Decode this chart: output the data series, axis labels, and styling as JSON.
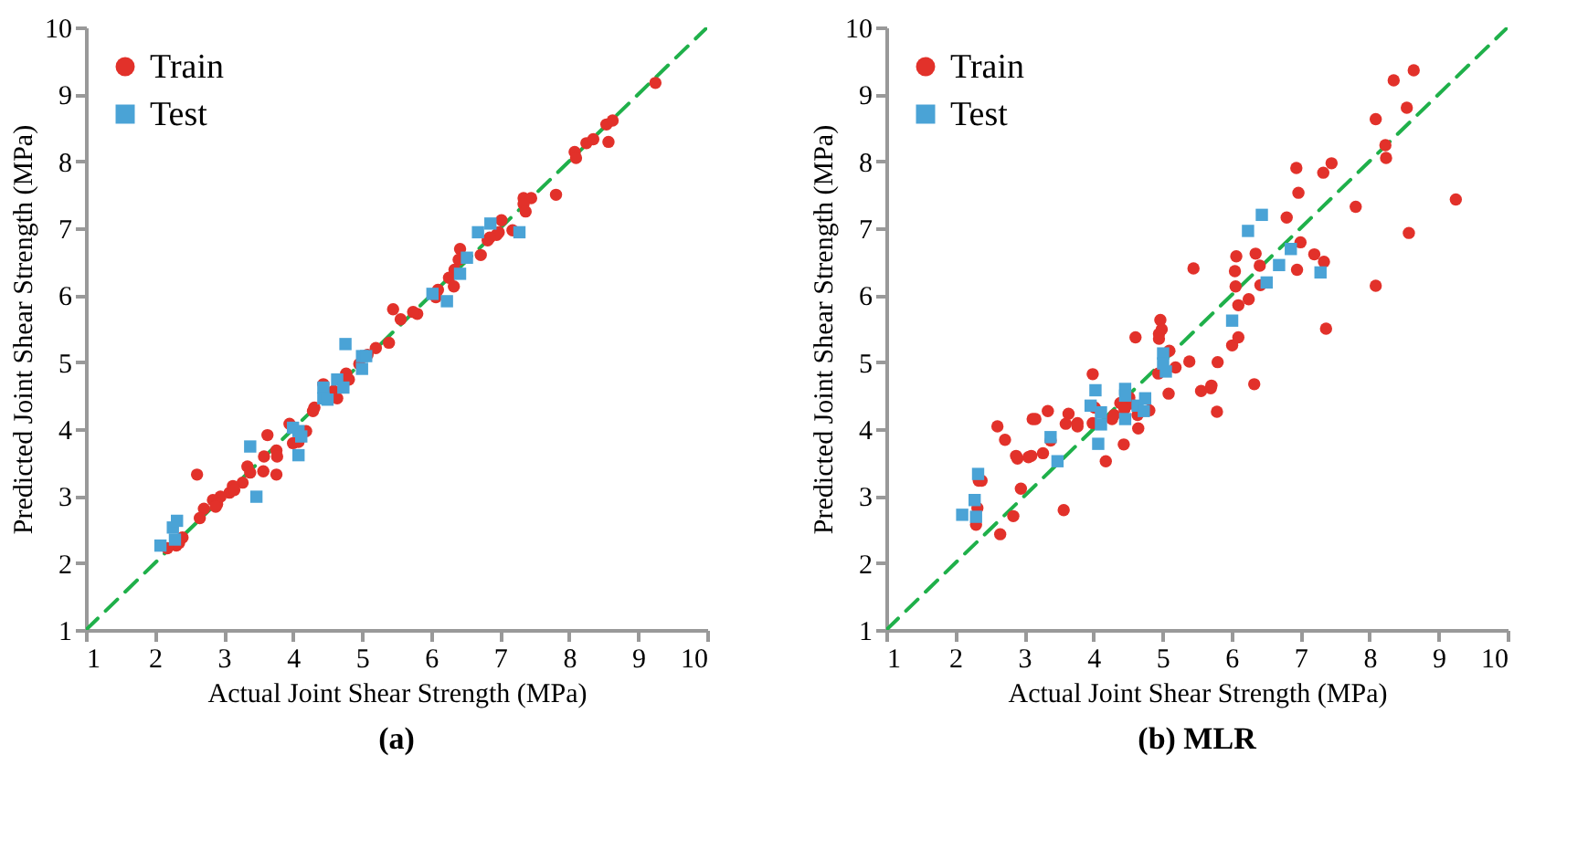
{
  "chart_data": [
    {
      "type": "scatter",
      "title": "(a)",
      "xlabel": "Actual Joint Shear Strength (MPa)",
      "ylabel": "Predicted Joint Shear Strength (MPa)",
      "xlim": [
        1,
        10
      ],
      "ylim": [
        1,
        10
      ],
      "xticks": [
        1,
        2,
        3,
        4,
        5,
        6,
        7,
        8,
        9,
        10
      ],
      "yticks": [
        1,
        2,
        3,
        4,
        5,
        6,
        7,
        8,
        9,
        10
      ],
      "grid": false,
      "legend": "top left",
      "series": [
        {
          "type": "line",
          "color": "#1fb04a",
          "line_style": "dashed",
          "marker": "none",
          "x": [
            1,
            10
          ],
          "values": [
            1,
            10
          ]
        },
        {
          "name": "Train",
          "color": "#e2312a",
          "marker": "circle",
          "x": [
            9.25,
            8.54,
            8.63,
            8.57,
            8.25,
            8.35,
            8.08,
            8.1,
            7.81,
            7.34,
            7.45,
            7.34,
            7.37,
            7.02,
            6.98,
            7.18,
            6.95,
            6.82,
            6.85,
            6.72,
            6.42,
            6.4,
            6.34,
            6.26,
            6.33,
            6.1,
            6.07,
            5.8,
            5.74,
            5.56,
            5.45,
            5.39,
            5.2,
            5.08,
            4.96,
            4.77,
            4.81,
            4.59,
            4.64,
            4.44,
            4.31,
            4.29,
            4.19,
            3.95,
            4.0,
            4.08,
            3.63,
            3.76,
            3.77,
            3.58,
            3.57,
            3.76,
            3.34,
            3.38,
            3.27,
            3.13,
            3.08,
            3.15,
            2.95,
            2.84,
            2.9,
            2.88,
            2.61,
            2.71,
            2.65,
            2.4,
            2.31,
            2.35,
            2.18
          ],
          "values": [
            9.17,
            8.55,
            8.61,
            8.29,
            8.27,
            8.33,
            8.14,
            8.05,
            7.5,
            7.45,
            7.45,
            7.36,
            7.25,
            7.12,
            6.94,
            6.97,
            6.9,
            6.82,
            6.86,
            6.6,
            6.69,
            6.53,
            6.38,
            6.26,
            6.13,
            6.08,
            5.97,
            5.72,
            5.75,
            5.64,
            5.79,
            5.29,
            5.21,
            5.11,
            4.97,
            4.83,
            4.74,
            4.57,
            4.46,
            4.67,
            4.32,
            4.27,
            3.97,
            4.08,
            3.79,
            3.81,
            3.91,
            3.68,
            3.59,
            3.59,
            3.37,
            3.32,
            3.44,
            3.35,
            3.2,
            3.15,
            3.05,
            3.09,
            2.99,
            2.94,
            2.88,
            2.84,
            3.32,
            2.81,
            2.67,
            2.38,
            2.26,
            2.3,
            2.22
          ]
        },
        {
          "name": "Test",
          "color": "#4aa3d6",
          "marker": "square",
          "x": [
            2.08,
            2.26,
            2.32,
            2.29,
            3.38,
            3.47,
            4.0,
            4.08,
            4.12,
            4.08,
            4.44,
            4.44,
            4.5,
            4.64,
            4.73,
            4.76,
            5.0,
            5.06,
            5.0,
            6.02,
            6.23,
            6.42,
            6.52,
            6.68,
            6.86,
            7.28
          ],
          "values": [
            2.26,
            2.53,
            2.63,
            2.35,
            3.74,
            2.99,
            4.02,
            3.97,
            3.89,
            3.61,
            4.62,
            4.46,
            4.44,
            4.74,
            4.62,
            5.27,
            5.09,
            5.09,
            4.9,
            6.02,
            5.91,
            6.32,
            6.56,
            6.94,
            7.07,
            6.94
          ]
        }
      ]
    },
    {
      "type": "scatter",
      "title": "(b) MLR",
      "xlabel": "Actual Joint Shear Strength (MPa)",
      "ylabel": "Predicted Joint Shear Strength (MPa)",
      "xlim": [
        1,
        10
      ],
      "ylim": [
        1,
        10
      ],
      "xticks": [
        1,
        2,
        3,
        4,
        5,
        6,
        7,
        8,
        9,
        10
      ],
      "yticks": [
        1,
        2,
        3,
        4,
        5,
        6,
        7,
        8,
        9,
        10
      ],
      "grid": false,
      "legend": "top left",
      "series": [
        {
          "type": "line",
          "color": "#1fb04a",
          "line_style": "dashed",
          "marker": "none",
          "x": [
            1,
            10
          ],
          "values": [
            1,
            10
          ]
        },
        {
          "name": "Train",
          "color": "#e2312a",
          "marker": "circle",
          "x": [
            8.64,
            8.35,
            8.54,
            8.09,
            8.23,
            8.24,
            9.25,
            8.57,
            8.09,
            7.8,
            6.94,
            7.45,
            7.33,
            6.97,
            6.8,
            7.0,
            7.2,
            7.34,
            6.95,
            7.37,
            6.07,
            6.35,
            6.41,
            6.05,
            6.42,
            6.06,
            6.25,
            6.1,
            6.01,
            6.1,
            5.8,
            6.33,
            5.45,
            4.97,
            4.99,
            4.95,
            4.95,
            5.1,
            5.19,
            5.39,
            5.09,
            4.94,
            5.56,
            5.7,
            5.71,
            5.79,
            4.61,
            3.99,
            4.54,
            4.39,
            4.45,
            4.64,
            4.65,
            4.81,
            4.52,
            4.27,
            4.3,
            4.44,
            4.18,
            3.99,
            4.02,
            3.77,
            3.77,
            3.64,
            3.6,
            3.34,
            3.12,
            3.16,
            3.38,
            3.27,
            3.1,
            3.06,
            2.9,
            2.88,
            2.61,
            2.72,
            2.95,
            2.84,
            2.65,
            3.57,
            2.3,
            2.32,
            2.38,
            2.34
          ],
          "values": [
            9.36,
            9.21,
            8.8,
            8.63,
            8.24,
            8.05,
            7.43,
            6.93,
            6.14,
            7.32,
            7.9,
            7.97,
            7.83,
            7.53,
            7.16,
            6.79,
            6.61,
            6.5,
            6.38,
            5.5,
            6.58,
            6.62,
            6.44,
            6.36,
            6.15,
            6.13,
            5.94,
            5.85,
            5.25,
            5.37,
            5.0,
            4.67,
            6.4,
            5.63,
            5.49,
            5.42,
            5.35,
            5.17,
            4.92,
            5.01,
            4.53,
            4.83,
            4.57,
            4.61,
            4.65,
            4.26,
            5.37,
            4.82,
            4.38,
            4.39,
            4.3,
            4.21,
            4.01,
            4.28,
            4.47,
            4.15,
            4.21,
            3.77,
            3.52,
            4.09,
            4.32,
            4.09,
            4.04,
            4.23,
            4.08,
            4.27,
            4.15,
            4.15,
            3.83,
            3.64,
            3.6,
            3.58,
            3.56,
            3.6,
            4.04,
            3.84,
            3.11,
            2.7,
            2.43,
            2.79,
            2.57,
            2.82,
            3.23,
            3.23
          ]
        },
        {
          "name": "Test",
          "color": "#4aa3d6",
          "marker": "square",
          "x": [
            2.1,
            2.28,
            2.3,
            2.33,
            3.38,
            3.48,
            3.96,
            4.03,
            4.11,
            4.11,
            4.07,
            4.46,
            4.46,
            4.46,
            4.64,
            4.75,
            4.73,
            5.01,
            5.01,
            5.05,
            6.01,
            6.24,
            6.44,
            6.51,
            6.69,
            6.86,
            7.29
          ],
          "values": [
            2.72,
            2.94,
            2.69,
            3.33,
            3.88,
            3.52,
            4.35,
            4.58,
            4.25,
            4.07,
            3.78,
            4.6,
            4.5,
            4.15,
            4.35,
            4.46,
            4.27,
            5.13,
            4.98,
            4.86,
            5.62,
            6.96,
            7.2,
            6.19,
            6.45,
            6.69,
            6.34
          ]
        }
      ]
    }
  ]
}
